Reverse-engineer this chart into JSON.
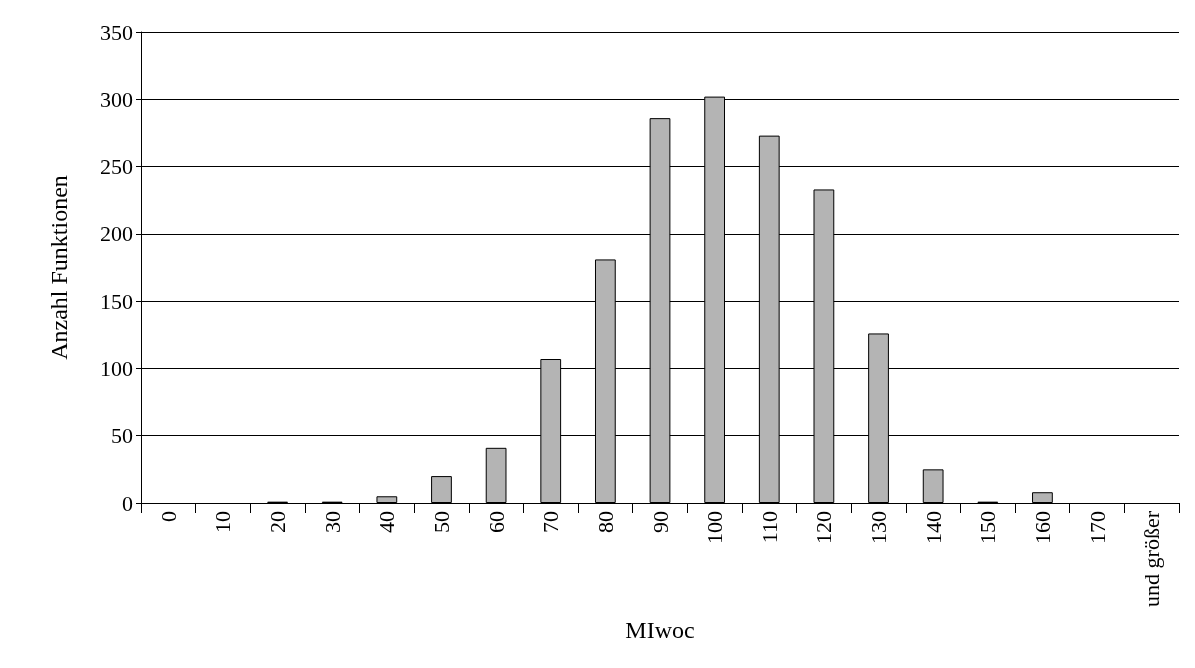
{
  "chart_data": {
    "type": "bar",
    "xlabel": "MIwoc",
    "ylabel": "Anzahl Funktionen",
    "categories": [
      "0",
      "10",
      "20",
      "30",
      "40",
      "50",
      "60",
      "70",
      "80",
      "90",
      "100",
      "110",
      "120",
      "130",
      "140",
      "150",
      "160",
      "170",
      "und größer"
    ],
    "values": [
      0,
      0,
      1,
      1,
      5,
      20,
      41,
      107,
      181,
      286,
      302,
      273,
      233,
      126,
      25,
      1,
      8,
      0,
      0
    ],
    "color": "#b4b4b4",
    "ylim": [
      0,
      350
    ],
    "yticks": [
      0,
      50,
      100,
      150,
      200,
      250,
      300,
      350
    ],
    "grid": "y"
  }
}
